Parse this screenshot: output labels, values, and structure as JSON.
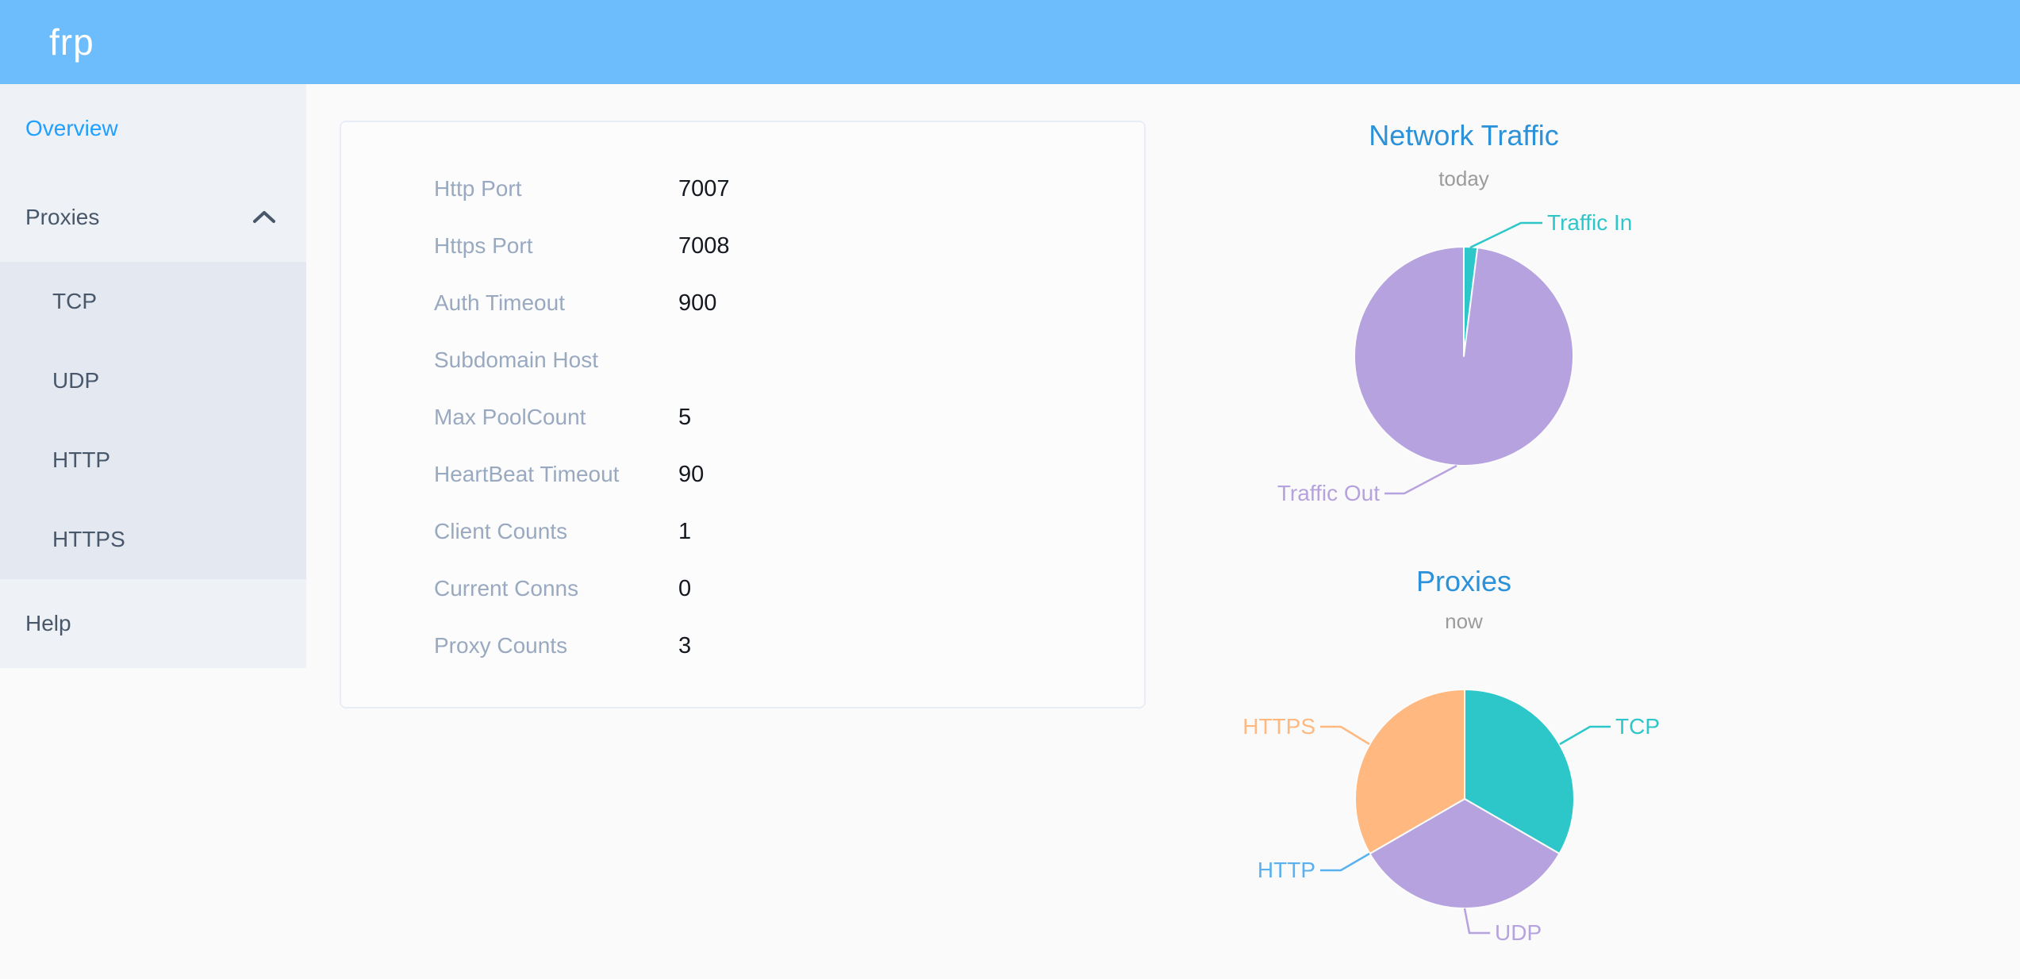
{
  "header": {
    "logo": "frp"
  },
  "theme": {
    "header_bg": "#6dbcfb",
    "sidebar_bg": "#eef1f6",
    "submenu_bg": "#e4e8f1",
    "menu_text": "#48576a",
    "menu_active": "#20a0ff",
    "card_label": "#99a9bf",
    "chart_title_color": "#2b91d8",
    "chart_subtitle_color": "#9b9b9b",
    "page_bg": "#fafafa"
  },
  "sidebar": {
    "overview_label": "Overview",
    "proxies_label": "Proxies",
    "proxies_children": {
      "tcp": "TCP",
      "udp": "UDP",
      "http": "HTTP",
      "https": "HTTPS"
    },
    "help_label": "Help"
  },
  "overview": {
    "rows": [
      {
        "label": "Http Port",
        "value": "7007"
      },
      {
        "label": "Https Port",
        "value": "7008"
      },
      {
        "label": "Auth Timeout",
        "value": "900"
      },
      {
        "label": "Subdomain Host",
        "value": ""
      },
      {
        "label": "Max PoolCount",
        "value": "5"
      },
      {
        "label": "HeartBeat Timeout",
        "value": "90"
      },
      {
        "label": "Client Counts",
        "value": "1"
      },
      {
        "label": "Current Conns",
        "value": "0"
      },
      {
        "label": "Proxy Counts",
        "value": "3"
      }
    ]
  },
  "chart_data": [
    {
      "type": "pie",
      "title": "Network Traffic",
      "subtitle": "today",
      "legend_position": "outside-callout",
      "values_are": "estimated percent of circle, no numeric labels shown",
      "slices": [
        {
          "label": "Traffic In",
          "value": 2,
          "color": "#2ec7c9"
        },
        {
          "label": "Traffic Out",
          "value": 98,
          "color": "#b6a2de"
        }
      ]
    },
    {
      "type": "pie",
      "title": "Proxies",
      "subtitle": "now",
      "legend_position": "outside-callout",
      "values_are": "proxy counts inferred from equal thirds and Proxy Counts = 3",
      "slices": [
        {
          "label": "TCP",
          "value": 1,
          "color": "#2ec7c9"
        },
        {
          "label": "UDP",
          "value": 1,
          "color": "#b6a2de"
        },
        {
          "label": "HTTP",
          "value": 0,
          "color": "#5ab1ef"
        },
        {
          "label": "HTTPS",
          "value": 1,
          "color": "#ffb980"
        }
      ]
    }
  ]
}
